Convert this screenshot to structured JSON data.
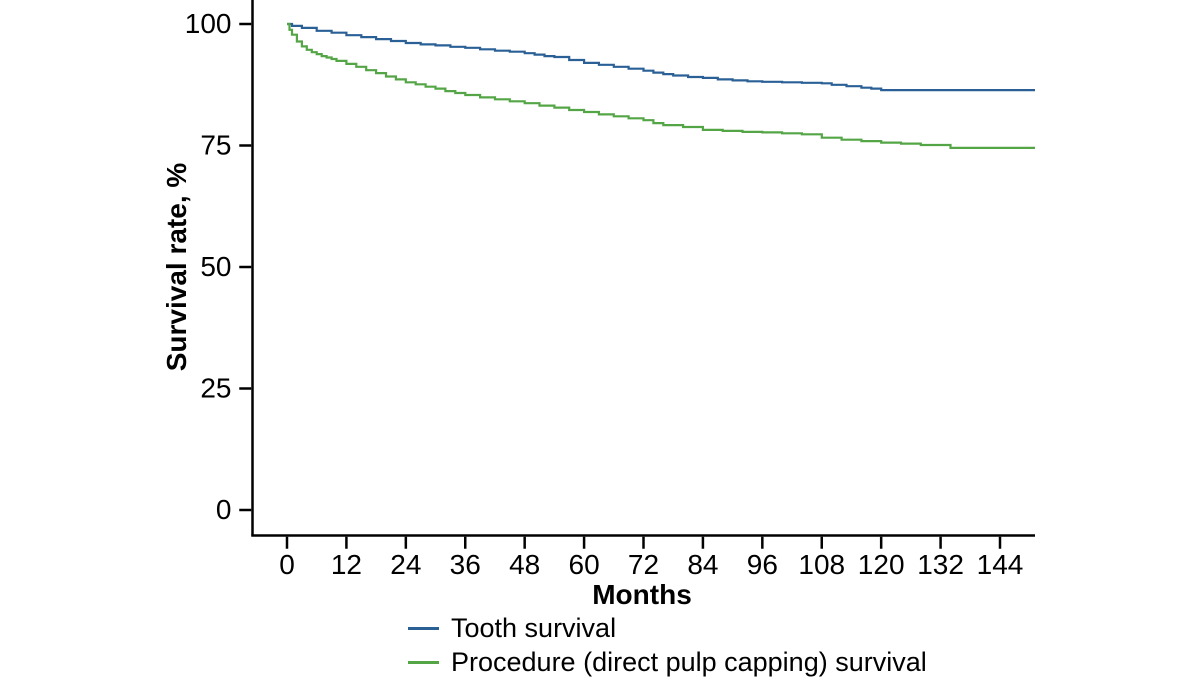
{
  "page": {
    "background": "#ffffff"
  },
  "chart_data": {
    "type": "line",
    "subtype": "kaplan_meier_step_curves",
    "title": "",
    "xlabel": "Months",
    "ylabel": "Survival rate, %",
    "x_ticks": [
      0,
      12,
      24,
      36,
      48,
      60,
      72,
      84,
      96,
      108,
      120,
      132,
      144
    ],
    "y_ticks": [
      0,
      25,
      50,
      75,
      100
    ],
    "xlim": [
      0,
      151
    ],
    "ylim": [
      0,
      100
    ],
    "grid": false,
    "legend_position": "bottom",
    "axis_color": "#000000",
    "text_color": "#000000",
    "series": [
      {
        "name": "Tooth survival",
        "color": "#2a6096",
        "points": [
          [
            0,
            100
          ],
          [
            1,
            99.6
          ],
          [
            3,
            99.2
          ],
          [
            6,
            98.6
          ],
          [
            9,
            98.2
          ],
          [
            12,
            97.7
          ],
          [
            15,
            97.3
          ],
          [
            18,
            96.9
          ],
          [
            21,
            96.5
          ],
          [
            24,
            96.1
          ],
          [
            27,
            95.8
          ],
          [
            30,
            95.6
          ],
          [
            33,
            95.3
          ],
          [
            36,
            95.1
          ],
          [
            39,
            94.8
          ],
          [
            42,
            94.5
          ],
          [
            45,
            94.3
          ],
          [
            48,
            94.0
          ],
          [
            50,
            93.7
          ],
          [
            52,
            93.4
          ],
          [
            54,
            93.2
          ],
          [
            57,
            92.6
          ],
          [
            60,
            92.0
          ],
          [
            63,
            91.6
          ],
          [
            66,
            91.2
          ],
          [
            69,
            90.8
          ],
          [
            72,
            90.4
          ],
          [
            74,
            90.0
          ],
          [
            76,
            89.7
          ],
          [
            78,
            89.4
          ],
          [
            81,
            89.1
          ],
          [
            84,
            88.9
          ],
          [
            87,
            88.6
          ],
          [
            90,
            88.4
          ],
          [
            93,
            88.2
          ],
          [
            96,
            88.1
          ],
          [
            100,
            88.0
          ],
          [
            104,
            87.9
          ],
          [
            108,
            87.8
          ],
          [
            110,
            87.5
          ],
          [
            113,
            87.2
          ],
          [
            116,
            86.9
          ],
          [
            118,
            86.7
          ],
          [
            120,
            86.4
          ],
          [
            151,
            86.4
          ]
        ]
      },
      {
        "name": "Procedure (direct pulp capping) survival",
        "color": "#54a546",
        "points": [
          [
            0,
            100
          ],
          [
            0.5,
            98.8
          ],
          [
            1,
            97.8
          ],
          [
            2,
            96.4
          ],
          [
            3,
            95.4
          ],
          [
            4,
            94.7
          ],
          [
            5,
            94.2
          ],
          [
            6,
            93.8
          ],
          [
            7,
            93.4
          ],
          [
            8,
            93.1
          ],
          [
            9,
            92.8
          ],
          [
            10,
            92.4
          ],
          [
            12,
            91.8
          ],
          [
            14,
            91.2
          ],
          [
            16,
            90.5
          ],
          [
            18,
            89.9
          ],
          [
            20,
            89.2
          ],
          [
            22,
            88.6
          ],
          [
            24,
            88.0
          ],
          [
            26,
            87.6
          ],
          [
            28,
            87.1
          ],
          [
            30,
            86.7
          ],
          [
            32,
            86.2
          ],
          [
            34,
            85.8
          ],
          [
            36,
            85.4
          ],
          [
            39,
            84.9
          ],
          [
            42,
            84.5
          ],
          [
            45,
            84.1
          ],
          [
            48,
            83.7
          ],
          [
            51,
            83.2
          ],
          [
            54,
            82.8
          ],
          [
            57,
            82.3
          ],
          [
            60,
            81.9
          ],
          [
            63,
            81.4
          ],
          [
            66,
            81.0
          ],
          [
            69,
            80.6
          ],
          [
            72,
            80.2
          ],
          [
            74,
            79.6
          ],
          [
            76,
            79.2
          ],
          [
            80,
            78.8
          ],
          [
            84,
            78.2
          ],
          [
            88,
            78.0
          ],
          [
            92,
            77.8
          ],
          [
            96,
            77.7
          ],
          [
            100,
            77.5
          ],
          [
            104,
            77.3
          ],
          [
            108,
            76.6
          ],
          [
            112,
            76.2
          ],
          [
            116,
            75.9
          ],
          [
            120,
            75.6
          ],
          [
            124,
            75.4
          ],
          [
            128,
            75.1
          ],
          [
            134,
            74.5
          ],
          [
            151,
            74.5
          ]
        ]
      }
    ]
  }
}
